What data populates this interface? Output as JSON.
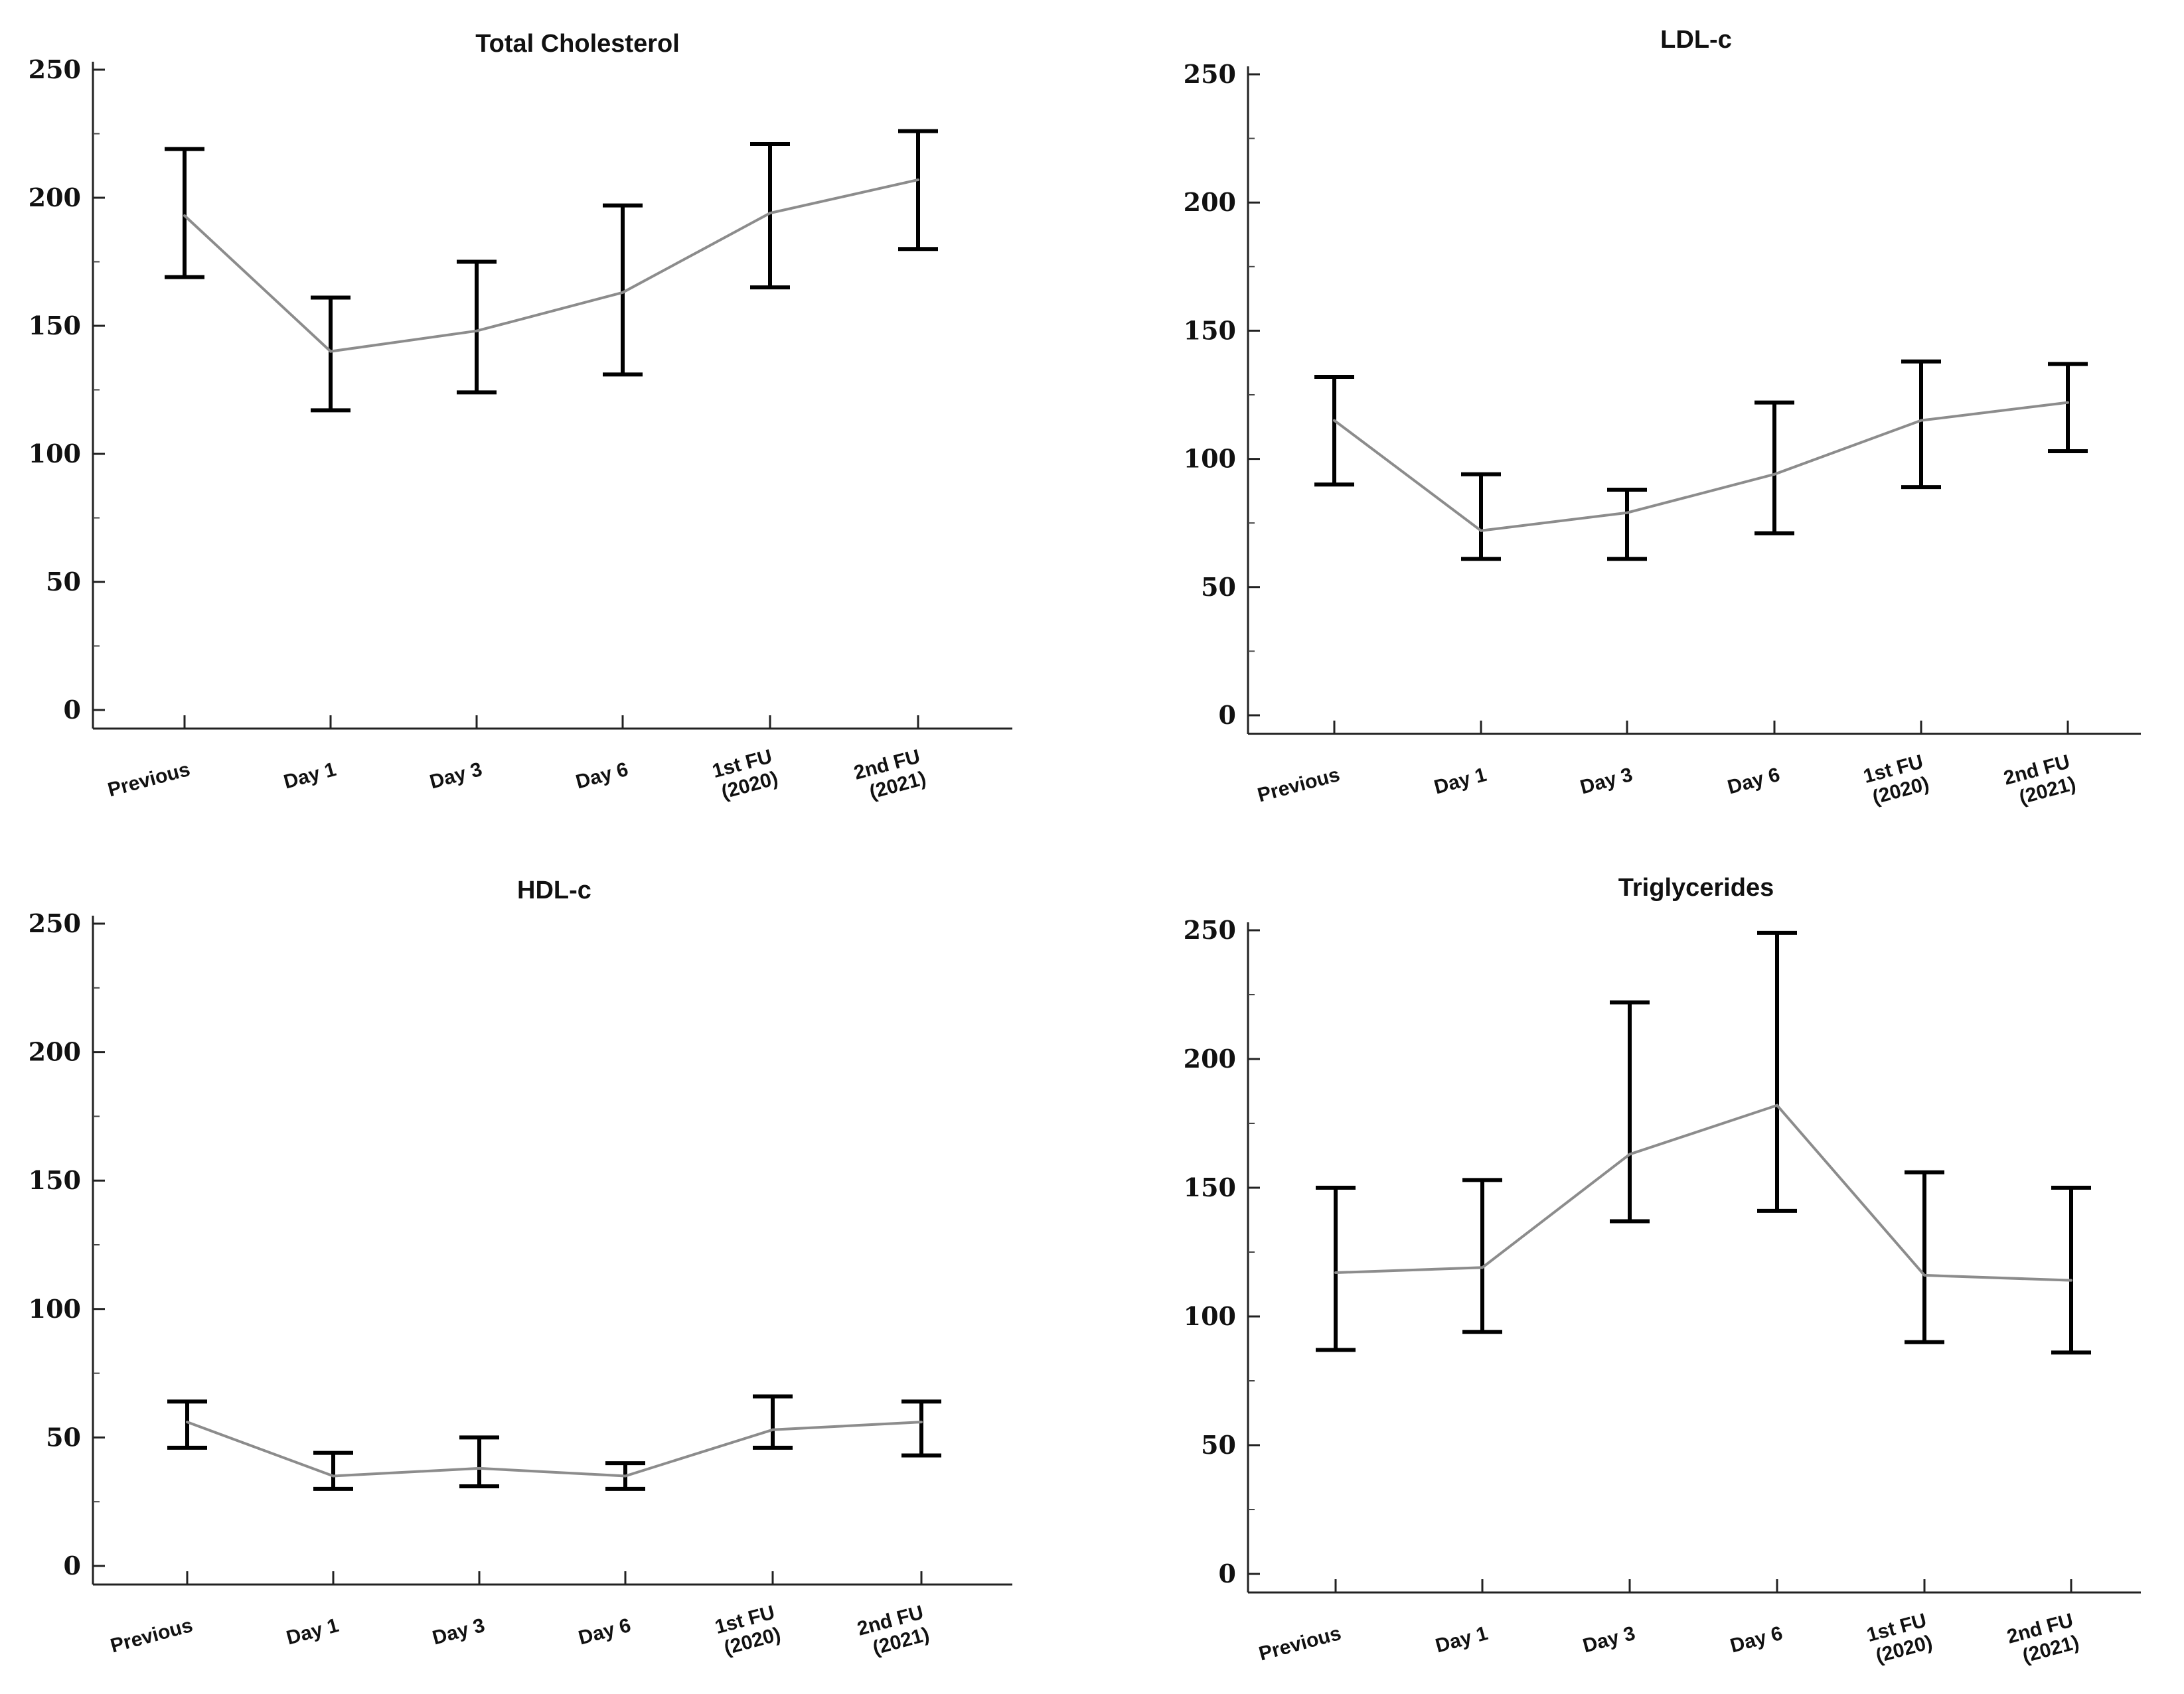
{
  "chart_data": [
    {
      "type": "line",
      "title": "Total Cholesterol",
      "categories": [
        "Previous",
        "Day 1",
        "Day 3",
        "Day 6",
        "1st FU (2020)",
        "2nd FU (2021)"
      ],
      "ylim": [
        0,
        250
      ],
      "yticks": [
        0,
        50,
        100,
        150,
        200,
        250
      ],
      "series": [
        {
          "name": "mean",
          "values": [
            193,
            140,
            148,
            163,
            194,
            207
          ]
        },
        {
          "name": "upper",
          "values": [
            219,
            161,
            175,
            197,
            221,
            226
          ]
        },
        {
          "name": "lower",
          "values": [
            169,
            117,
            124,
            131,
            165,
            180
          ]
        }
      ],
      "colors": {
        "line": "#8c8c8c",
        "error": "#000000"
      }
    },
    {
      "type": "line",
      "title": "LDL-c",
      "categories": [
        "Previous",
        "Day 1",
        "Day 3",
        "Day 6",
        "1st FU (2020)",
        "2nd FU (2021)"
      ],
      "ylim": [
        0,
        250
      ],
      "yticks": [
        0,
        50,
        100,
        150,
        200,
        250
      ],
      "series": [
        {
          "name": "mean",
          "values": [
            115,
            72,
            79,
            94,
            115,
            122
          ]
        },
        {
          "name": "upper",
          "values": [
            132,
            94,
            88,
            122,
            138,
            137
          ]
        },
        {
          "name": "lower",
          "values": [
            90,
            61,
            61,
            71,
            89,
            103
          ]
        }
      ],
      "colors": {
        "line": "#8c8c8c",
        "error": "#000000"
      }
    },
    {
      "type": "line",
      "title": "HDL-c",
      "categories": [
        "Previous",
        "Day 1",
        "Day 3",
        "Day 6",
        "1st FU (2020)",
        "2nd FU (2021)"
      ],
      "ylim": [
        0,
        250
      ],
      "yticks": [
        0,
        50,
        100,
        150,
        200,
        250
      ],
      "series": [
        {
          "name": "mean",
          "values": [
            56,
            35,
            38,
            35,
            53,
            56
          ]
        },
        {
          "name": "upper",
          "values": [
            64,
            44,
            50,
            40,
            66,
            64
          ]
        },
        {
          "name": "lower",
          "values": [
            46,
            30,
            31,
            30,
            46,
            43
          ]
        }
      ],
      "colors": {
        "line": "#8c8c8c",
        "error": "#000000"
      }
    },
    {
      "type": "line",
      "title": "Triglycerides",
      "categories": [
        "Previous",
        "Day 1",
        "Day 3",
        "Day 6",
        "1st FU (2020)",
        "2nd FU (2021)"
      ],
      "ylim": [
        0,
        250
      ],
      "yticks": [
        0,
        50,
        100,
        150,
        200,
        250
      ],
      "series": [
        {
          "name": "mean",
          "values": [
            117,
            119,
            163,
            182,
            116,
            114
          ]
        },
        {
          "name": "upper",
          "values": [
            150,
            153,
            222,
            249,
            156,
            150
          ]
        },
        {
          "name": "lower",
          "values": [
            87,
            94,
            137,
            141,
            90,
            86
          ]
        }
      ],
      "colors": {
        "line": "#8c8c8c",
        "error": "#000000"
      }
    }
  ]
}
